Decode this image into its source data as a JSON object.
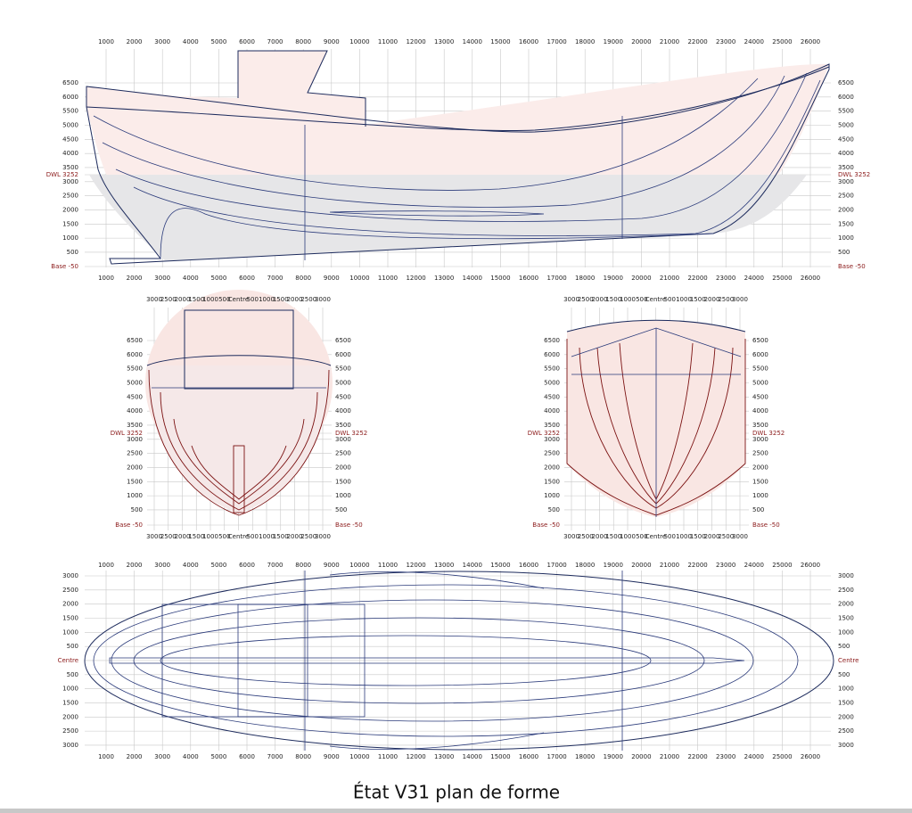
{
  "profile": {
    "x_ticks": [
      1000,
      2000,
      3000,
      4000,
      5000,
      6000,
      7000,
      8000,
      9000,
      10000,
      11000,
      12000,
      13000,
      14000,
      15000,
      16000,
      17000,
      18000,
      19000,
      20000,
      21000,
      22000,
      23000,
      24000,
      25000,
      26000
    ],
    "y_ticks": [
      6500,
      6000,
      5500,
      5000,
      4500,
      4000,
      3500,
      3000,
      2500,
      2000,
      1500,
      1000,
      500
    ],
    "dwl_label": "DWL 3252",
    "base_label": "Base -50"
  },
  "body_aft": {
    "x_ticks": [
      3000,
      2500,
      2000,
      1500,
      1000,
      500,
      "Centre",
      500,
      1000,
      1500,
      2000,
      2500,
      3000
    ],
    "y_ticks": [
      6500,
      6000,
      5500,
      5000,
      4500,
      4000,
      3500,
      3000,
      2500,
      2000,
      1500,
      1000,
      500
    ],
    "dwl_label": "DWL 3252",
    "base_label": "Base -50"
  },
  "body_fwd": {
    "x_ticks": [
      3000,
      2500,
      2000,
      1500,
      1000,
      500,
      "Centre",
      500,
      1000,
      1500,
      2000,
      2500,
      3000
    ],
    "y_ticks": [
      6500,
      6000,
      5500,
      5000,
      4500,
      4000,
      3500,
      3000,
      2500,
      2000,
      1500,
      1000,
      500
    ],
    "dwl_label": "DWL 3252",
    "base_label": "Base -50"
  },
  "plan": {
    "x_ticks": [
      1000,
      2000,
      3000,
      4000,
      5000,
      6000,
      7000,
      8000,
      9000,
      10000,
      11000,
      12000,
      13000,
      14000,
      15000,
      16000,
      17000,
      18000,
      19000,
      20000,
      21000,
      22000,
      23000,
      24000,
      25000,
      26000
    ],
    "y_ticks": [
      3000,
      2500,
      2000,
      1500,
      1000,
      500,
      "Centre",
      500,
      1000,
      1500,
      2000,
      2500,
      3000
    ]
  },
  "caption": "État V31 plan de forme"
}
